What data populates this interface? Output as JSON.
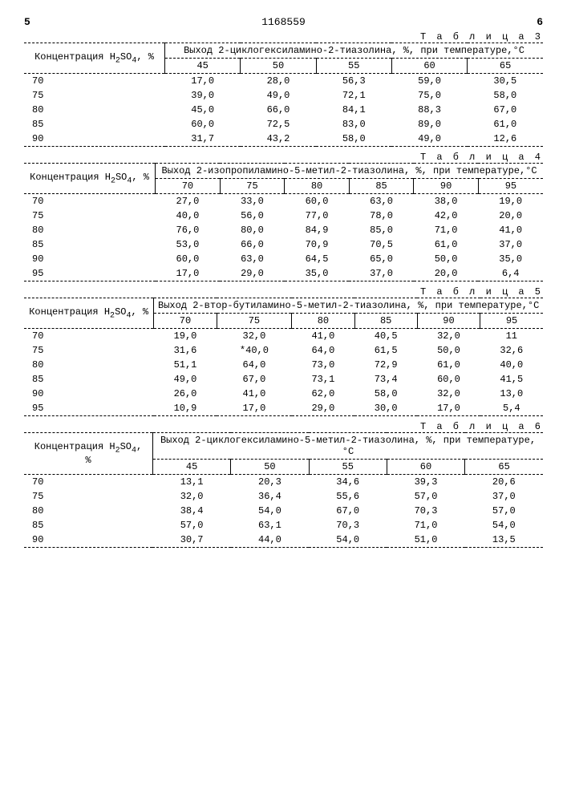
{
  "header": {
    "left_marker": "5",
    "doc_number": "1168559",
    "right_marker": "6"
  },
  "tables": [
    {
      "label": "Т а б л и ц а  3",
      "concentration_label": "Концентрация H₂SO₄, %",
      "yield_label": "Выход 2-циклогексиламино-2-тиазолина, %, при температуре,°С",
      "temps": [
        "45",
        "50",
        "55",
        "60",
        "65"
      ],
      "rows": [
        {
          "c": "70",
          "v": [
            "17,0",
            "28,0",
            "56,3",
            "59,0",
            "30,5"
          ]
        },
        {
          "c": "75",
          "v": [
            "39,0",
            "49,0",
            "72,1",
            "75,0",
            "58,0"
          ]
        },
        {
          "c": "80",
          "v": [
            "45,0",
            "66,0",
            "84,1",
            "88,3",
            "67,0"
          ]
        },
        {
          "c": "85",
          "v": [
            "60,0",
            "72,5",
            "83,0",
            "89,0",
            "61,0"
          ]
        },
        {
          "c": "90",
          "v": [
            "31,7",
            "43,2",
            "58,0",
            "49,0",
            "12,6"
          ]
        }
      ]
    },
    {
      "label": "Т а б л и ц а  4",
      "concentration_label": "Концентрация H₂SO₄, %",
      "yield_label": "Выход 2-изопропиламино-5-метил-2-тиазолина, %, при температуре,°С",
      "temps": [
        "70",
        "75",
        "80",
        "85",
        "90",
        "95"
      ],
      "rows": [
        {
          "c": "70",
          "v": [
            "27,0",
            "33,0",
            "60,0",
            "63,0",
            "38,0",
            "19,0"
          ]
        },
        {
          "c": "75",
          "v": [
            "40,0",
            "56,0",
            "77,0",
            "78,0",
            "42,0",
            "20,0"
          ]
        },
        {
          "c": "80",
          "v": [
            "76,0",
            "80,0",
            "84,9",
            "85,0",
            "71,0",
            "41,0"
          ]
        },
        {
          "c": "85",
          "v": [
            "53,0",
            "66,0",
            "70,9",
            "70,5",
            "61,0",
            "37,0"
          ]
        },
        {
          "c": "90",
          "v": [
            "60,0",
            "63,0",
            "64,5",
            "65,0",
            "50,0",
            "35,0"
          ]
        },
        {
          "c": "95",
          "v": [
            "17,0",
            "29,0",
            "35,0",
            "37,0",
            "20,0",
            "6,4"
          ]
        }
      ]
    },
    {
      "label": "Т а б л и ц а  5",
      "concentration_label": "Концентрация H₂SO₄, %",
      "yield_label": "Выход 2-втор-бутиламино-5-метил-2-тиазолина, %, при температуре,°С",
      "temps": [
        "70",
        "75",
        "80",
        "85",
        "90",
        "95"
      ],
      "rows": [
        {
          "c": "70",
          "v": [
            "19,0",
            "32,0",
            "41,0",
            "40,5",
            "32,0",
            "11"
          ]
        },
        {
          "c": "75",
          "v": [
            "31,6",
            "*40,0",
            "64,0",
            "61,5",
            "50,0",
            "32,6"
          ]
        },
        {
          "c": "80",
          "v": [
            "51,1",
            "64,0",
            "73,0",
            "72,9",
            "61,0",
            "40,0"
          ]
        },
        {
          "c": "85",
          "v": [
            "49,0",
            "67,0",
            "73,1",
            "73,4",
            "60,0",
            "41,5"
          ]
        },
        {
          "c": "90",
          "v": [
            "26,0",
            "41,0",
            "62,0",
            "58,0",
            "32,0",
            "13,0"
          ]
        },
        {
          "c": "95",
          "v": [
            "10,9",
            "17,0",
            "29,0",
            "30,0",
            "17,0",
            "5,4"
          ]
        }
      ]
    },
    {
      "label": "Т а б л и ц а  6",
      "concentration_label": "Концентрация H₂SO₄, %",
      "yield_label": "Выход 2-циклогексиламино-5-метил-2-тиазолина, %, при температуре,°С",
      "temps": [
        "45",
        "50",
        "55",
        "60",
        "65"
      ],
      "rows": [
        {
          "c": "70",
          "v": [
            "13,1",
            "20,3",
            "34,6",
            "39,3",
            "20,6"
          ]
        },
        {
          "c": "75",
          "v": [
            "32,0",
            "36,4",
            "55,6",
            "57,0",
            "37,0"
          ]
        },
        {
          "c": "80",
          "v": [
            "38,4",
            "54,0",
            "67,0",
            "70,3",
            "57,0"
          ]
        },
        {
          "c": "85",
          "v": [
            "57,0",
            "63,1",
            "70,3",
            "71,0",
            "54,0"
          ]
        },
        {
          "c": "90",
          "v": [
            "30,7",
            "44,0",
            "54,0",
            "51,0",
            "13,5"
          ]
        }
      ]
    }
  ]
}
